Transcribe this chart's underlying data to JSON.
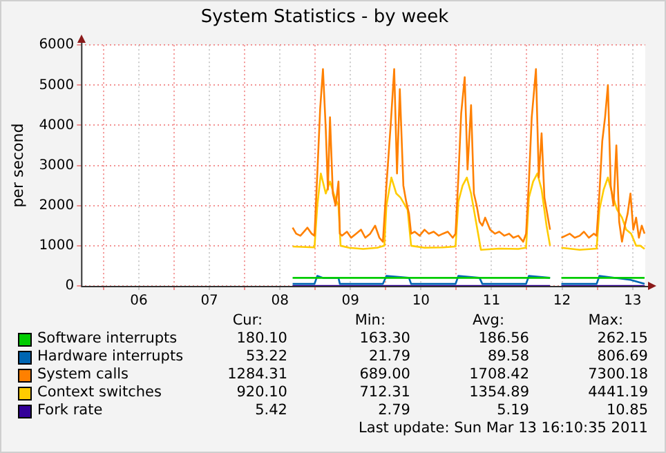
{
  "chart_data": {
    "type": "line",
    "title": "System Statistics - by week",
    "ylabel": "per second",
    "xlim": [
      5.68,
      13.68
    ],
    "xticks": [
      {
        "value": 6,
        "label": null
      },
      {
        "value": 6.5,
        "label": "06"
      },
      {
        "value": 7,
        "label": null
      },
      {
        "value": 7.5,
        "label": "07"
      },
      {
        "value": 8,
        "label": null
      },
      {
        "value": 8.5,
        "label": "08"
      },
      {
        "value": 9,
        "label": null
      },
      {
        "value": 9.5,
        "label": "09"
      },
      {
        "value": 10,
        "label": null
      },
      {
        "value": 10.5,
        "label": "10"
      },
      {
        "value": 11,
        "label": null
      },
      {
        "value": 11.5,
        "label": "11"
      },
      {
        "value": 12,
        "label": null
      },
      {
        "value": 12.5,
        "label": "12"
      },
      {
        "value": 13,
        "label": null
      },
      {
        "value": 13.5,
        "label": "13"
      }
    ],
    "ylim": [
      0,
      6000
    ],
    "yticks": [
      0,
      1000,
      2000,
      3000,
      4000,
      5000,
      6000
    ],
    "grid": true,
    "legend": "bottom",
    "series": [
      {
        "name": "Software interrupts",
        "color": "#00cc00",
        "x": [
          8.68,
          9.0,
          9.33,
          9.67,
          10.0,
          10.33,
          10.67,
          11.0,
          11.33,
          11.67,
          12.0,
          12.33,
          12.38,
          12.49,
          12.75,
          13.0,
          13.33,
          13.67
        ],
        "values": [
          200,
          200,
          200,
          200,
          200,
          200,
          200,
          200,
          200,
          200,
          200,
          200,
          null,
          200,
          200,
          200,
          200,
          200
        ]
      },
      {
        "name": "Hardware interrupts",
        "color": "#0066b3",
        "x": [
          8.68,
          8.99,
          9.03,
          9.11,
          9.33,
          9.35,
          9.96,
          10.01,
          10.33,
          10.36,
          10.99,
          11.03,
          11.33,
          11.37,
          11.99,
          12.03,
          12.33,
          12.38,
          12.49,
          12.99,
          13.03,
          13.47,
          13.67
        ],
        "values": [
          50,
          50,
          250,
          200,
          200,
          50,
          50,
          250,
          200,
          50,
          50,
          250,
          200,
          50,
          50,
          250,
          200,
          null,
          50,
          50,
          250,
          150,
          50
        ]
      },
      {
        "name": "System calls",
        "color": "#ff8000",
        "x": [
          8.68,
          8.73,
          8.79,
          8.84,
          8.89,
          8.95,
          8.99,
          9.03,
          9.07,
          9.11,
          9.15,
          9.18,
          9.21,
          9.25,
          9.29,
          9.33,
          9.35,
          9.38,
          9.45,
          9.51,
          9.58,
          9.65,
          9.71,
          9.78,
          9.85,
          9.91,
          9.96,
          10.01,
          10.07,
          10.12,
          10.16,
          10.2,
          10.25,
          10.29,
          10.33,
          10.36,
          10.41,
          10.48,
          10.55,
          10.61,
          10.68,
          10.75,
          10.81,
          10.88,
          10.95,
          10.99,
          11.03,
          11.07,
          11.12,
          11.16,
          11.21,
          11.25,
          11.29,
          11.33,
          11.37,
          11.41,
          11.48,
          11.55,
          11.61,
          11.68,
          11.75,
          11.81,
          11.88,
          11.95,
          11.99,
          12.03,
          12.07,
          12.13,
          12.17,
          12.21,
          12.25,
          12.29,
          12.33,
          12.38,
          12.49,
          12.55,
          12.61,
          12.68,
          12.75,
          12.81,
          12.88,
          12.95,
          12.99,
          13.03,
          13.07,
          13.11,
          13.15,
          13.19,
          13.23,
          13.27,
          13.31,
          13.35,
          13.39,
          13.43,
          13.47,
          13.51,
          13.55,
          13.59,
          13.63,
          13.67
        ],
        "values": [
          1450,
          1300,
          1250,
          1350,
          1450,
          1300,
          1250,
          2800,
          4400,
          5400,
          3900,
          2400,
          4200,
          2300,
          2000,
          2600,
          1300,
          1250,
          1350,
          1200,
          1300,
          1400,
          1200,
          1300,
          1500,
          1200,
          1100,
          2500,
          4000,
          5400,
          2800,
          4900,
          2500,
          2100,
          1800,
          1300,
          1350,
          1250,
          1400,
          1300,
          1350,
          1250,
          1300,
          1350,
          1200,
          1300,
          2700,
          4300,
          5200,
          2900,
          4500,
          2300,
          2000,
          1600,
          1500,
          1700,
          1400,
          1300,
          1350,
          1250,
          1300,
          1200,
          1250,
          1100,
          1300,
          2600,
          4200,
          5400,
          2700,
          3800,
          2200,
          1800,
          1400,
          null,
          1200,
          1250,
          1300,
          1200,
          1250,
          1350,
          1200,
          1300,
          1250,
          2300,
          3600,
          4200,
          5000,
          2500,
          2000,
          3500,
          1600,
          1100,
          1500,
          1800,
          2300,
          1400,
          1700,
          1200,
          1500,
          1300
        ]
      },
      {
        "name": "Context switches",
        "color": "#ffcc00",
        "x": [
          8.68,
          8.99,
          9.03,
          9.08,
          9.15,
          9.21,
          9.28,
          9.33,
          9.36,
          9.48,
          9.68,
          9.88,
          9.98,
          10.01,
          10.08,
          10.15,
          10.21,
          10.31,
          10.36,
          10.55,
          10.81,
          10.99,
          11.03,
          11.09,
          11.15,
          11.21,
          11.28,
          11.35,
          11.61,
          11.88,
          11.99,
          12.03,
          12.09,
          12.15,
          12.21,
          12.28,
          12.33,
          12.38,
          12.49,
          12.75,
          12.99,
          13.03,
          13.09,
          13.15,
          13.21,
          13.28,
          13.35,
          13.41,
          13.48,
          13.55,
          13.61,
          13.67
        ],
        "values": [
          980,
          960,
          2000,
          2800,
          2300,
          2600,
          2200,
          2000,
          1000,
          950,
          920,
          950,
          1000,
          2000,
          2700,
          2300,
          2200,
          1900,
          1000,
          950,
          960,
          980,
          2100,
          2500,
          2700,
          2300,
          1600,
          900,
          930,
          920,
          950,
          2200,
          2600,
          2800,
          2400,
          1500,
          1000,
          null,
          950,
          900,
          930,
          1900,
          2400,
          2700,
          2300,
          1900,
          1700,
          1400,
          1300,
          1000,
          1000,
          920
        ]
      },
      {
        "name": "Fork rate",
        "color": "#330099",
        "x": [
          8.68,
          10.0,
          12.33,
          12.38,
          12.49,
          13.67
        ],
        "values": [
          0,
          0,
          0,
          null,
          0,
          0
        ]
      }
    ],
    "annotations": [
      "Cur:",
      "Min:",
      "Avg:",
      "Max:",
      "180.10",
      "163.30",
      "186.56",
      "262.15",
      "53.22",
      "21.79",
      "89.58",
      "806.69",
      "1284.31",
      "689.00",
      "1708.42",
      "7300.18",
      "920.10",
      "712.31",
      "1354.89",
      "4441.19",
      "5.42",
      "2.79",
      "5.19",
      "10.85",
      "Last update: Sun Mar 13 16:10:35 2011"
    ]
  }
}
